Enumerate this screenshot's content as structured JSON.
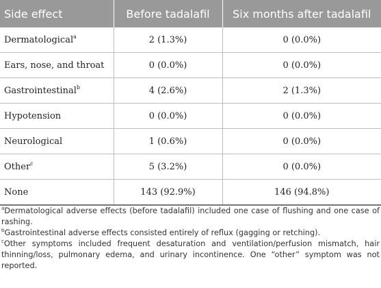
{
  "table": {
    "headers": [
      "Side effect",
      "Before tadalafil",
      "Six months after tadalafil"
    ],
    "rows": [
      {
        "label": "Dermatological",
        "sup": "a",
        "before": "2 (1.3%)",
        "after": "0 (0.0%)"
      },
      {
        "label": "Ears, nose, and throat",
        "sup": "",
        "before": "0 (0.0%)",
        "after": "0 (0.0%)"
      },
      {
        "label": "Gastrointestinal",
        "sup": "b",
        "before": "4 (2.6%)",
        "after": "2 (1.3%)"
      },
      {
        "label": "Hypotension",
        "sup": "",
        "before": "0 (0.0%)",
        "after": "0 (0.0%)"
      },
      {
        "label": "Neurological",
        "sup": "",
        "before": "1 (0.6%)",
        "after": "0 (0.0%)"
      },
      {
        "label": "Other",
        "sup": "c",
        "before": "5 (3.2%)",
        "after": "0 (0.0%)"
      },
      {
        "label": "None",
        "sup": "",
        "before": "143 (92.9%)",
        "after": "146 (94.8%)"
      }
    ]
  },
  "footnotes": [
    {
      "mark": "a",
      "text": "Dermatological adverse effects (before tadalafil) included one case of flushing and one case of rashing."
    },
    {
      "mark": "b",
      "text": "Gastrointestinal adverse effects consisted entirely of reflux (gagging or retching)."
    },
    {
      "mark": "c",
      "text": "Other symptoms included frequent desaturation and ventilation/perfusion mismatch, hair thinning/loss, pulmonary edema, and urinary incontinence. One “other” symptom was not reported."
    }
  ],
  "colors": {
    "header_bg": "#999999",
    "header_text": "#ffffff",
    "grid": "#bdbdbd"
  }
}
